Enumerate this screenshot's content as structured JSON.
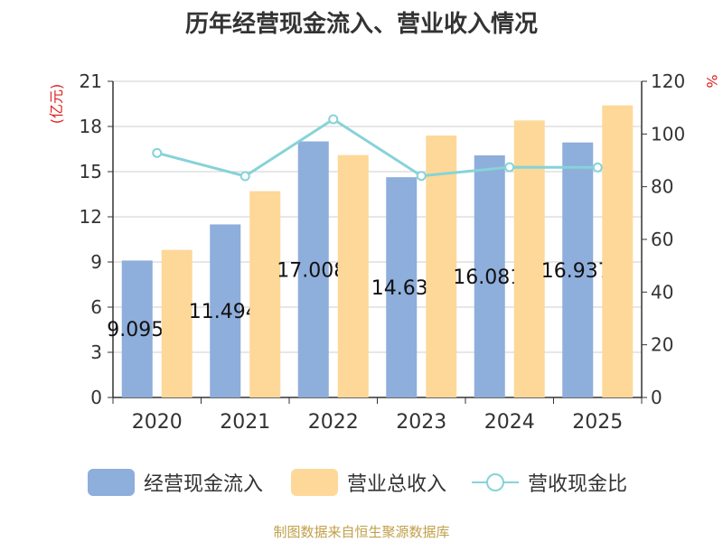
{
  "chart_data": {
    "type": "bar",
    "title": "历年经营现金流入、营业收入情况",
    "categories": [
      "2020",
      "2021",
      "2022",
      "2023",
      "2024",
      "2025"
    ],
    "series": [
      {
        "name": "经营现金流入",
        "kind": "bar",
        "axis": "left",
        "color": "#8eaedb",
        "values": [
          9.095,
          11.494,
          17.008,
          14.63,
          16.081,
          16.937
        ],
        "labels": [
          "9.095",
          "11.494",
          "17.008",
          "14.63",
          "16.081",
          "16.937"
        ]
      },
      {
        "name": "营业总收入",
        "kind": "bar",
        "axis": "left",
        "color": "#fdd898",
        "values": [
          9.8,
          13.7,
          16.1,
          17.4,
          18.4,
          19.4
        ]
      },
      {
        "name": "营收现金比",
        "kind": "line",
        "axis": "right",
        "color": "#86d3d8",
        "values": [
          92.8,
          84.0,
          105.6,
          84.1,
          87.4,
          87.3
        ]
      }
    ],
    "left_axis": {
      "label": "(亿元)",
      "min": 0,
      "max": 21,
      "ticks": [
        0,
        3,
        6,
        9,
        12,
        15,
        18,
        21
      ]
    },
    "right_axis": {
      "label": "%",
      "min": 0,
      "max": 120,
      "ticks": [
        0,
        20,
        40,
        60,
        80,
        100,
        120
      ]
    },
    "grid": true,
    "legend_position": "bottom"
  },
  "legend": {
    "cash_inflow": "经营现金流入",
    "revenue": "营业总收入",
    "ratio": "营收现金比"
  },
  "source": "制图数据来自恒生聚源数据库"
}
